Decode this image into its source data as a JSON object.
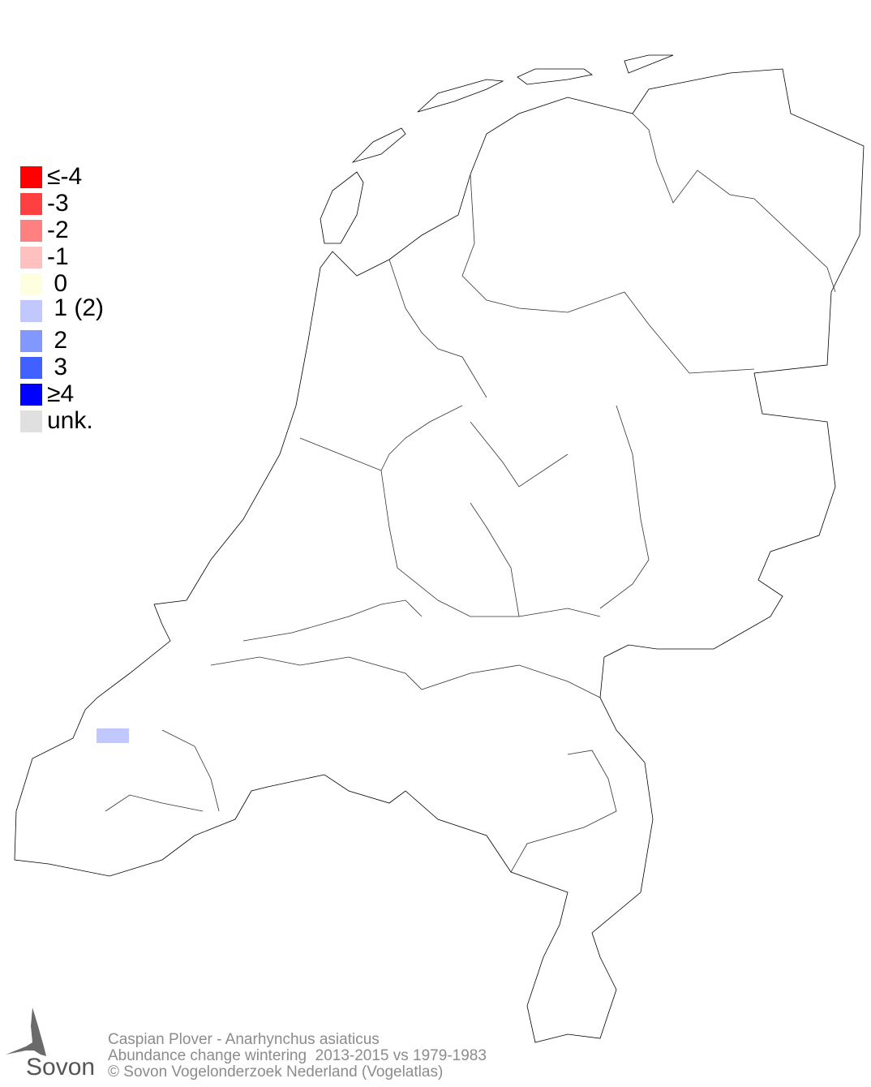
{
  "legend": [
    {
      "label": "≤-4",
      "color": "#ff0000"
    },
    {
      "label": "-3",
      "color": "#ff4040"
    },
    {
      "label": "-2",
      "color": "#ff8080"
    },
    {
      "label": "-1",
      "color": "#ffc0c0"
    },
    {
      "label": " 0",
      "color": "#ffffe0"
    },
    {
      "label": " 1 (2)",
      "color": "#c0c8ff"
    },
    {
      "label": " 2",
      "color": "#8098ff"
    },
    {
      "label": " 3",
      "color": "#4060ff"
    },
    {
      "label": "≥4",
      "color": "#0000ff"
    },
    {
      "label": "unk.",
      "color": "#e0e0e0"
    }
  ],
  "map": {
    "region": "Netherlands",
    "highlighted_cells": [
      {
        "class": "1 (2)",
        "color": "#c0c8ff"
      }
    ]
  },
  "footer": {
    "species": "Caspian Plover - Anarhynchus asiaticus",
    "subtitle": "Abundance change wintering  2013-2015 vs 1979-1983",
    "copyright": "© Sovon Vogelonderzoek Nederland (Vogelatlas)"
  },
  "logo": {
    "text": "Sovon"
  }
}
